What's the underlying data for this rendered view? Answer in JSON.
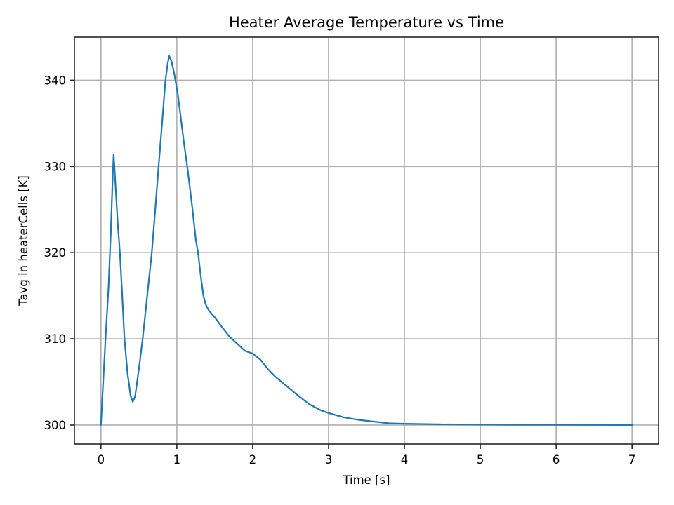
{
  "chart_data": {
    "type": "line",
    "title": "Heater Average Temperature vs Time",
    "xlabel": "Time [s]",
    "ylabel": "Tavg in heaterCells [K]",
    "xlim": [
      -0.35,
      7.35
    ],
    "ylim": [
      297.8,
      345.0
    ],
    "xticks": [
      0,
      1,
      2,
      3,
      4,
      5,
      6,
      7
    ],
    "yticks": [
      300,
      310,
      320,
      330,
      340
    ],
    "grid": true,
    "legend": null,
    "series": [
      {
        "name": "Tavg",
        "color": "#1f77b4",
        "x": [
          0.0,
          0.02,
          0.06,
          0.1,
          0.13,
          0.155,
          0.167,
          0.18,
          0.22,
          0.25,
          0.28,
          0.31,
          0.35,
          0.39,
          0.42,
          0.45,
          0.5,
          0.55,
          0.61,
          0.67,
          0.72,
          0.76,
          0.81,
          0.85,
          0.88,
          0.9,
          0.93,
          0.97,
          1.01,
          1.05,
          1.09,
          1.14,
          1.2,
          1.25,
          1.28,
          1.32,
          1.35,
          1.38,
          1.42,
          1.5,
          1.6,
          1.7,
          1.8,
          1.9,
          2.0,
          2.1,
          2.2,
          2.3,
          2.45,
          2.6,
          2.75,
          2.9,
          3.0,
          3.2,
          3.4,
          3.6,
          3.8,
          4.0,
          4.5,
          5.0,
          5.5,
          6.0,
          6.5,
          7.0
        ],
        "y": [
          300.0,
          303.5,
          310.0,
          316.0,
          322.5,
          329.0,
          331.4,
          329.5,
          323.5,
          320.0,
          315.0,
          310.0,
          306.0,
          303.4,
          302.7,
          303.3,
          306.5,
          310.0,
          315.0,
          320.0,
          325.5,
          330.0,
          335.5,
          340.0,
          342.0,
          342.8,
          342.2,
          340.6,
          338.5,
          335.8,
          333.0,
          329.8,
          325.5,
          321.5,
          320.0,
          317.0,
          315.0,
          314.0,
          313.3,
          312.5,
          311.3,
          310.2,
          309.4,
          308.6,
          308.3,
          307.6,
          306.5,
          305.6,
          304.5,
          303.4,
          302.4,
          301.7,
          301.4,
          300.9,
          300.6,
          300.4,
          300.2,
          300.15,
          300.08,
          300.05,
          300.03,
          300.02,
          300.01,
          300.0
        ]
      }
    ]
  },
  "labels": {
    "title": "Heater Average Temperature vs Time",
    "xlabel": "Time [s]",
    "ylabel": "Tavg in heaterCells [K]",
    "xtick_labels": [
      "0",
      "1",
      "2",
      "3",
      "4",
      "5",
      "6",
      "7"
    ],
    "ytick_labels": [
      "300",
      "310",
      "320",
      "330",
      "340"
    ]
  }
}
